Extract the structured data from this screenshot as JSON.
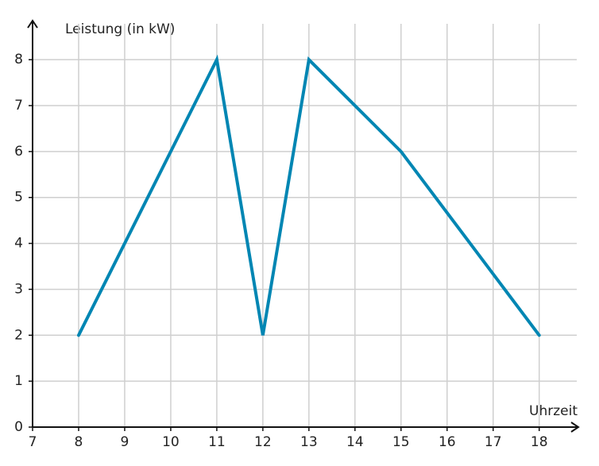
{
  "chart_data": {
    "type": "line",
    "x_label": "Uhrzeit",
    "y_label": "Leistung (in kW)",
    "x": [
      8,
      11,
      12,
      13,
      15,
      18
    ],
    "values": [
      2,
      8,
      2,
      8,
      6,
      2
    ],
    "color": "#0086b3",
    "xlim": [
      7,
      18.85
    ],
    "ylim": [
      0,
      8.85
    ],
    "xticks": [
      7,
      8,
      9,
      10,
      11,
      12,
      13,
      14,
      15,
      16,
      17,
      18
    ],
    "yticks": [
      0,
      1,
      2,
      3,
      4,
      5,
      6,
      7,
      8
    ],
    "grid": true
  }
}
